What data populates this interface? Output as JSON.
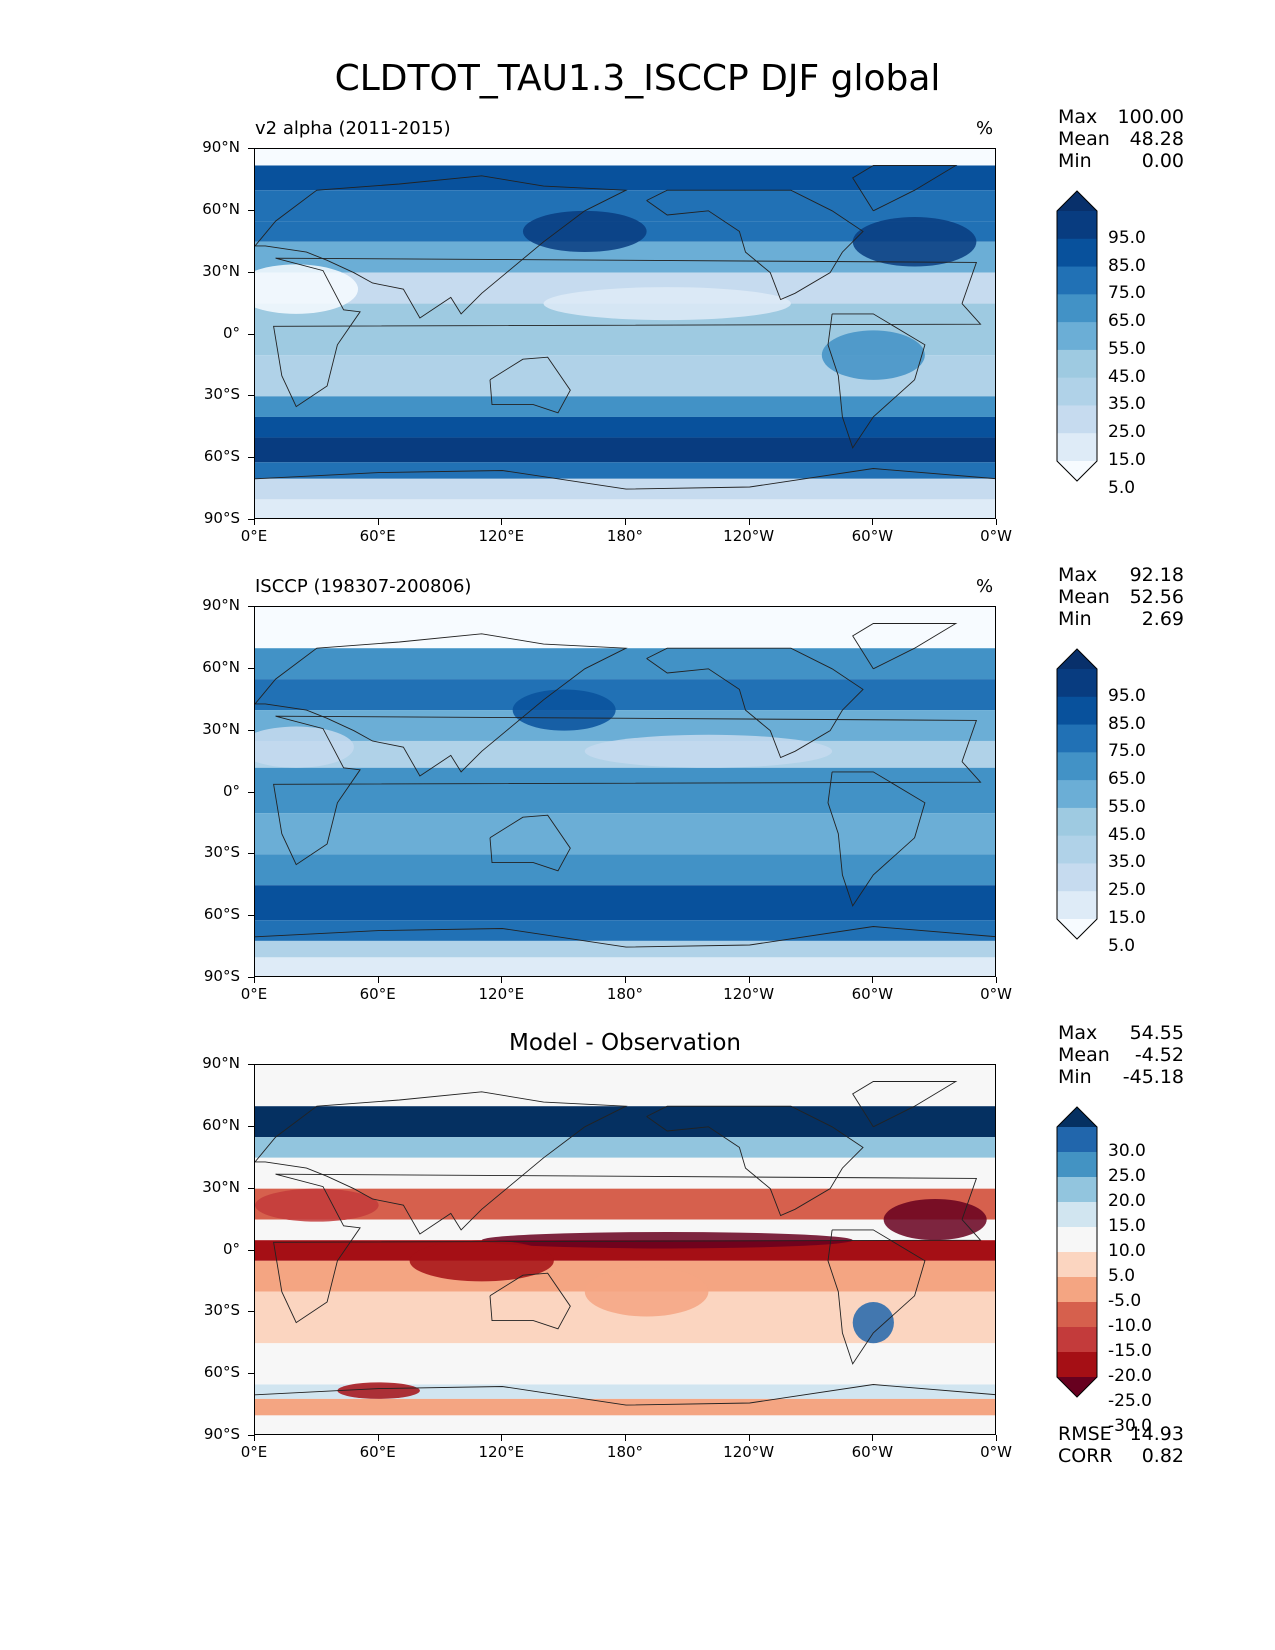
{
  "figure": {
    "title": "CLDTOT_TAU1.3_ISCCP DJF global"
  },
  "axes": {
    "lat_ticks": [
      "90°N",
      "60°N",
      "30°N",
      "0°",
      "30°S",
      "60°S",
      "90°S"
    ],
    "lon_ticks": [
      "0°E",
      "60°E",
      "120°E",
      "180°",
      "120°W",
      "60°W",
      "0°W"
    ]
  },
  "panels": [
    {
      "title_left": "v2 alpha (2011-2015)",
      "title_center": "",
      "units": "%",
      "stats": [
        {
          "label": "Max",
          "value": "100.00"
        },
        {
          "label": "Mean",
          "value": "48.28"
        },
        {
          "label": "Min",
          "value": "0.00"
        }
      ],
      "colorbar_labels": [
        "95.0",
        "85.0",
        "75.0",
        "65.0",
        "55.0",
        "45.0",
        "35.0",
        "25.0",
        "15.0",
        "5.0"
      ]
    },
    {
      "title_left": "ISCCP (198307-200806)",
      "title_center": "",
      "units": "%",
      "stats": [
        {
          "label": "Max",
          "value": "92.18"
        },
        {
          "label": "Mean",
          "value": "52.56"
        },
        {
          "label": "Min",
          "value": "2.69"
        }
      ],
      "colorbar_labels": [
        "95.0",
        "85.0",
        "75.0",
        "65.0",
        "55.0",
        "45.0",
        "35.0",
        "25.0",
        "15.0",
        "5.0"
      ]
    },
    {
      "title_left": "",
      "title_center": "Model - Observation",
      "units": "",
      "stats": [
        {
          "label": "Max",
          "value": "54.55"
        },
        {
          "label": "Mean",
          "value": "-4.52"
        },
        {
          "label": "Min",
          "value": "-45.18"
        }
      ],
      "colorbar_labels": [
        "30.0",
        "25.0",
        "20.0",
        "15.0",
        "10.0",
        "5.0",
        "-5.0",
        "-10.0",
        "-15.0",
        "-20.0",
        "-25.0",
        "-30.0"
      ],
      "extra_stats": [
        {
          "label": "RMSE",
          "value": "14.93"
        },
        {
          "label": "CORR",
          "value": "0.82"
        }
      ]
    }
  ],
  "chart_data": [
    {
      "type": "heatmap",
      "title": "v2 alpha (2011-2015)",
      "units": "%",
      "xlim": [
        0,
        360
      ],
      "ylim": [
        -90,
        90
      ],
      "projection": "PlateCarree",
      "colormap": "Blues",
      "levels": [
        0,
        5,
        15,
        25,
        35,
        45,
        55,
        65,
        75,
        85,
        95,
        100
      ],
      "max": 100.0,
      "mean": 48.28,
      "min": 0.0,
      "zonal_mean_profile": {
        "lat": [
          75,
          60,
          45,
          30,
          15,
          0,
          -15,
          -30,
          -45,
          -60,
          -75,
          -85
        ],
        "value": [
          80,
          75,
          70,
          35,
          30,
          45,
          35,
          40,
          80,
          90,
          30,
          15
        ]
      }
    },
    {
      "type": "heatmap",
      "title": "ISCCP (198307-200806)",
      "units": "%",
      "xlim": [
        0,
        360
      ],
      "ylim": [
        -90,
        90
      ],
      "projection": "PlateCarree",
      "colormap": "Blues",
      "levels": [
        0,
        5,
        15,
        25,
        35,
        45,
        55,
        65,
        75,
        85,
        95,
        100
      ],
      "max": 92.18,
      "mean": 52.56,
      "min": 2.69,
      "data_lat_extent": [
        -90,
        70
      ],
      "zonal_mean_profile": {
        "lat": [
          65,
          45,
          30,
          15,
          0,
          -15,
          -30,
          -45,
          -60,
          -75,
          -85
        ],
        "value": [
          65,
          65,
          50,
          40,
          55,
          50,
          50,
          75,
          80,
          35,
          15
        ]
      }
    },
    {
      "type": "heatmap",
      "title": "Model - Observation",
      "xlim": [
        0,
        360
      ],
      "ylim": [
        -90,
        90
      ],
      "projection": "PlateCarree",
      "colormap": "RdBu",
      "levels": [
        -30,
        -25,
        -20,
        -15,
        -10,
        -5,
        5,
        10,
        15,
        20,
        25,
        30
      ],
      "max": 54.55,
      "mean": -4.52,
      "min": -45.18,
      "rmse": 14.93,
      "corr": 0.82,
      "data_lat_extent": [
        -90,
        70
      ]
    }
  ]
}
